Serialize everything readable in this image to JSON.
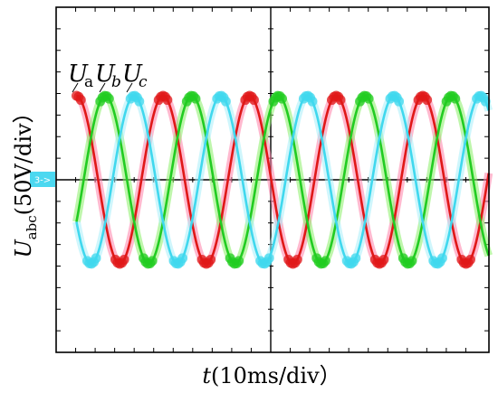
{
  "chart_data": {
    "type": "line",
    "title": "",
    "xlabel": {
      "symbol": "t",
      "unit": "(10ms/div）"
    },
    "ylabel": {
      "symbol": "U",
      "subscript": "abc",
      "unit": "(50V/div）"
    },
    "channel_marker": "3->",
    "xlim": [
      -50,
      50
    ],
    "ylim": [
      -200,
      200
    ],
    "x_units": "ms",
    "y_units": "V",
    "grid": {
      "major_divisions_x": 2,
      "major_divisions_y": 2,
      "minor_ticks_per_half_x": 11,
      "minor_ticks_per_half_y": 8
    },
    "frequency_hz": 50,
    "amplitude_v": 95,
    "series": [
      {
        "name": "U",
        "subscript": "a",
        "italic_sub": false,
        "phase_deg": 0,
        "color": "#e01818",
        "halo": "#ff80a8"
      },
      {
        "name": "U",
        "subscript": "b",
        "italic_sub": true,
        "phase_deg": -120,
        "color": "#22cc22",
        "halo": "#88ee66"
      },
      {
        "name": "U",
        "subscript": "c",
        "italic_sub": true,
        "phase_deg": 120,
        "color": "#40d8ee",
        "halo": "#a8eefa"
      }
    ]
  }
}
